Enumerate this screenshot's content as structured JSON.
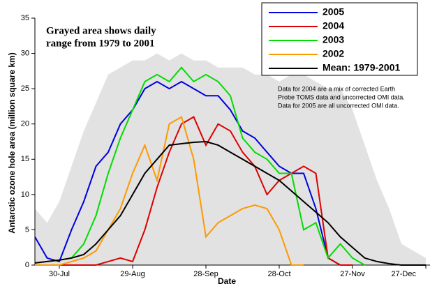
{
  "chart_data": {
    "type": "line",
    "x_label": "Date",
    "y_label": "Antarctic ozone hole area (million square km)",
    "annotation": [
      "Grayed area shows daily",
      "range from 1979 to 2001"
    ],
    "note": [
      "Data for 2004 are a mix of corrected Earth",
      "Probe TOMS data and uncorrected OMI data.",
      "Data for 2005 are all uncorrected OMI data."
    ],
    "x": [
      "20-Jul",
      "25-Jul",
      "30-Jul",
      "4-Aug",
      "9-Aug",
      "14-Aug",
      "19-Aug",
      "24-Aug",
      "29-Aug",
      "3-Sep",
      "8-Sep",
      "13-Sep",
      "18-Sep",
      "23-Sep",
      "28-Sep",
      "3-Oct",
      "8-Oct",
      "13-Oct",
      "18-Oct",
      "23-Oct",
      "28-Oct",
      "2-Nov",
      "7-Nov",
      "12-Nov",
      "17-Nov",
      "22-Nov",
      "27-Nov",
      "2-Dec",
      "7-Dec",
      "12-Dec",
      "17-Dec",
      "22-Dec",
      "27-Dec"
    ],
    "xlim": [
      "20-Jul",
      "28-Dec"
    ],
    "xticks": [
      "30-Jul",
      "29-Aug",
      "28-Sep",
      "28-Oct",
      "27-Nov",
      "27-Dec"
    ],
    "ylim": [
      0,
      35
    ],
    "yticks": [
      0,
      5,
      10,
      15,
      20,
      25,
      30,
      35
    ],
    "legend": "top-right",
    "range": {
      "color": "#e2e2e2",
      "high": [
        8,
        6,
        9,
        14,
        19,
        23,
        27,
        28,
        29,
        29,
        30,
        29,
        30,
        29,
        29,
        28,
        28,
        28,
        27,
        27,
        26,
        27,
        27,
        26,
        25,
        25,
        22,
        17,
        12,
        8,
        3,
        2,
        1
      ],
      "low": [
        0,
        0,
        0,
        0,
        0,
        0,
        0,
        0,
        0,
        0,
        0,
        0,
        0,
        0,
        0,
        0,
        0,
        0,
        0,
        0,
        0,
        0,
        0,
        0,
        0,
        0,
        0,
        0,
        0,
        0,
        0,
        0,
        0
      ]
    },
    "series": [
      {
        "name": "2005",
        "color": "#0000dd",
        "values": [
          4,
          1,
          0.5,
          5,
          9,
          14,
          16,
          20,
          22,
          25,
          26,
          25,
          26,
          25,
          24,
          24,
          22,
          19,
          18,
          16,
          14,
          13,
          13,
          8,
          1,
          0,
          null,
          null,
          null,
          null,
          null,
          null,
          null
        ]
      },
      {
        "name": "2004",
        "color": "#dd0000",
        "values": [
          0,
          0,
          0,
          0,
          0,
          0,
          0.5,
          1,
          0.5,
          5,
          11,
          16,
          20,
          21,
          17,
          20,
          19,
          16,
          14,
          10,
          12,
          13,
          14,
          13,
          1,
          0,
          0,
          null,
          null,
          null,
          null,
          null,
          null
        ]
      },
      {
        "name": "2003",
        "color": "#00dd00",
        "values": [
          null,
          null,
          null,
          1,
          3,
          7,
          13,
          18,
          22,
          26,
          27,
          26,
          28,
          26,
          27,
          26,
          24,
          18,
          16,
          15,
          13,
          13,
          5,
          6,
          1,
          3,
          1,
          0,
          null,
          null,
          null,
          null,
          null
        ]
      },
      {
        "name": "2002",
        "color": "#ff9900",
        "values": [
          0,
          0,
          0,
          0.5,
          1,
          2,
          5,
          8,
          13,
          17,
          12,
          20,
          21,
          15,
          4,
          6,
          7,
          8,
          8.5,
          8,
          5,
          0,
          0,
          null,
          null,
          null,
          null,
          null,
          null,
          null,
          null,
          null,
          null
        ]
      },
      {
        "name": "Mean: 1979-2001",
        "color": "#000000",
        "values": [
          0.3,
          0.5,
          0.7,
          1,
          1.5,
          3,
          5,
          7,
          10,
          13,
          15,
          17,
          17.2,
          17.4,
          17.5,
          17,
          16,
          15,
          14,
          13,
          12,
          10.5,
          9,
          7.5,
          6,
          4,
          2.5,
          1,
          0.5,
          0.2,
          0,
          0,
          0
        ]
      }
    ]
  }
}
